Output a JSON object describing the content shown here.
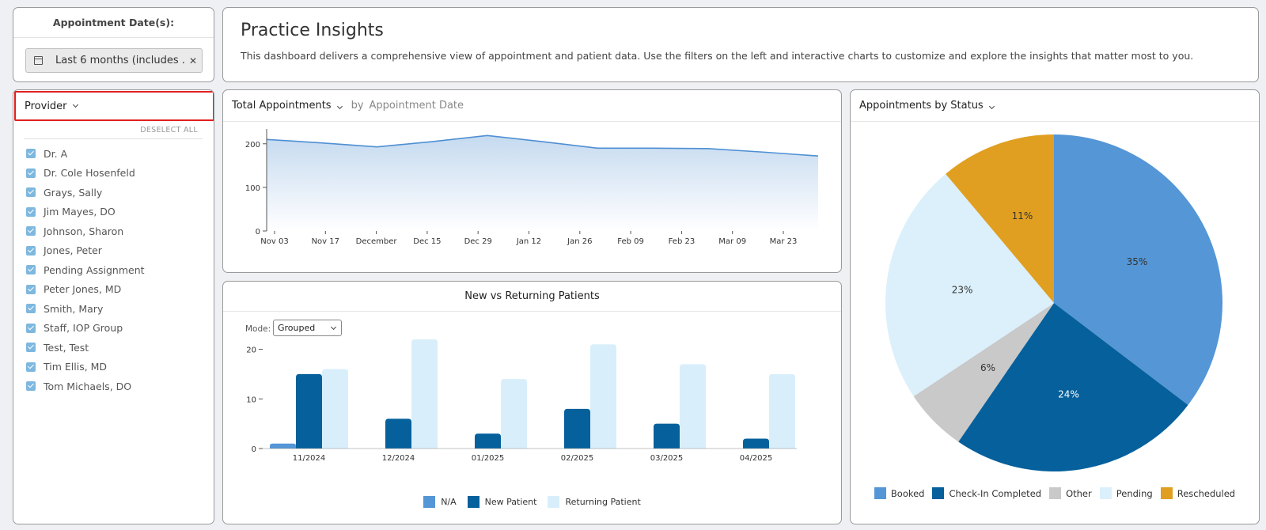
{
  "date_filter": {
    "title": "Appointment Date(s):",
    "chip_text": "Last 6 months (includes ...",
    "clear_icon": "close-icon",
    "calendar_icon": "calendar-icon"
  },
  "provider_filter": {
    "header_label": "Provider",
    "deselect_all_label": "DESELECT ALL",
    "items": [
      {
        "label": "Dr. A",
        "checked": true
      },
      {
        "label": "Dr. Cole Hosenfeld",
        "checked": true
      },
      {
        "label": "Grays, Sally",
        "checked": true
      },
      {
        "label": "Jim Mayes, DO",
        "checked": true
      },
      {
        "label": "Johnson, Sharon",
        "checked": true
      },
      {
        "label": "Jones, Peter",
        "checked": true
      },
      {
        "label": "Pending Assignment",
        "checked": true
      },
      {
        "label": "Peter Jones, MD",
        "checked": true
      },
      {
        "label": "Smith, Mary",
        "checked": true
      },
      {
        "label": "Staff, IOP Group",
        "checked": true
      },
      {
        "label": "Test, Test",
        "checked": true
      },
      {
        "label": "Tim Ellis, MD",
        "checked": true
      },
      {
        "label": "Tom Michaels, DO",
        "checked": true
      }
    ]
  },
  "header": {
    "title": "Practice Insights",
    "description": "This dashboard delivers a comprehensive view of appointment and patient data. Use the filters on the left and interactive charts to customize and explore the insights that matter most to you."
  },
  "line_card": {
    "metric_label": "Total Appointments",
    "by_label": "by",
    "dimension_label": "Appointment Date"
  },
  "bar_card": {
    "title": "New vs Returning Patients",
    "mode_label": "Mode:",
    "mode_value": "Grouped"
  },
  "pie_card": {
    "title": "Appointments by Status"
  },
  "chart_data": [
    {
      "type": "area",
      "x": [
        "Nov 03",
        "Nov 17",
        "December",
        "Dec 15",
        "Dec 29",
        "Jan 12",
        "Jan 26",
        "Feb 09",
        "Feb 23",
        "Mar 09",
        "Mar 23"
      ],
      "series": [
        {
          "values": [
            210,
            202,
            193,
            205,
            219,
            205,
            190,
            190,
            189,
            181,
            172
          ]
        }
      ],
      "y_ticks": [
        0,
        100,
        200
      ],
      "ylim": [
        0,
        225
      ],
      "color": "#4f8fd3"
    },
    {
      "type": "bar",
      "categories": [
        "11/2024",
        "12/2024",
        "01/2025",
        "02/2025",
        "03/2025",
        "04/2025"
      ],
      "series": [
        {
          "name": "N/A",
          "values": [
            1,
            0,
            0,
            0,
            0,
            0
          ],
          "color": "#5496d6"
        },
        {
          "name": "New Patient",
          "values": [
            15,
            6,
            3,
            8,
            5,
            2
          ],
          "color": "#05609c"
        },
        {
          "name": "Returning Patient",
          "values": [
            16,
            22,
            14,
            21,
            17,
            15
          ],
          "color": "#d8effb"
        }
      ],
      "y_ticks": [
        0,
        10,
        20
      ],
      "ylim": [
        0,
        22
      ]
    },
    {
      "type": "pie",
      "slices": [
        {
          "name": "Booked",
          "value": 35,
          "label": "35%",
          "color": "#5496d6"
        },
        {
          "name": "Check-In Completed",
          "value": 24,
          "label": "24%",
          "color": "#05609c"
        },
        {
          "name": "Other",
          "value": 6,
          "label": "6%",
          "color": "#c9c9c9"
        },
        {
          "name": "Pending",
          "value": 23,
          "label": "23%",
          "color": "#dbf0fb"
        },
        {
          "name": "Rescheduled",
          "value": 11,
          "label": "11%",
          "color": "#e09f20"
        }
      ]
    }
  ]
}
